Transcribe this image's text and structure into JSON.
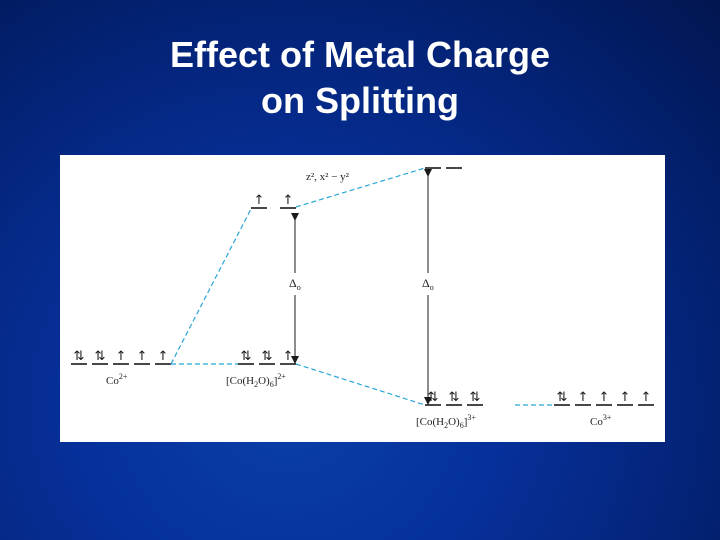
{
  "slide": {
    "title_line1": "Effect of Metal Charge",
    "title_line2": "on Splitting"
  },
  "diagram": {
    "eg_label": "z², x² − y²",
    "delta_label": "Δ",
    "delta_sub": "o",
    "co2_label": "Co",
    "co2_sup": "2+",
    "co2_complex_main": "[Co(H",
    "co2_complex_sub1": "2",
    "co2_complex_mid": "O)",
    "co2_complex_sub2": "6",
    "co2_complex_end": "]",
    "co2_complex_sup": "2+",
    "co3_complex_main": "[Co(H",
    "co3_complex_sub1": "2",
    "co3_complex_mid": "O)",
    "co3_complex_sub2": "6",
    "co3_complex_end": "]",
    "co3_complex_sup": "3+",
    "co3_label": "Co",
    "co3_sup": "3+",
    "electron_up": "↑",
    "electron_pair": "⇅",
    "colors": {
      "background": "#032274",
      "dashed_line": "#29a6d8",
      "level": "#1a1a1a"
    }
  }
}
